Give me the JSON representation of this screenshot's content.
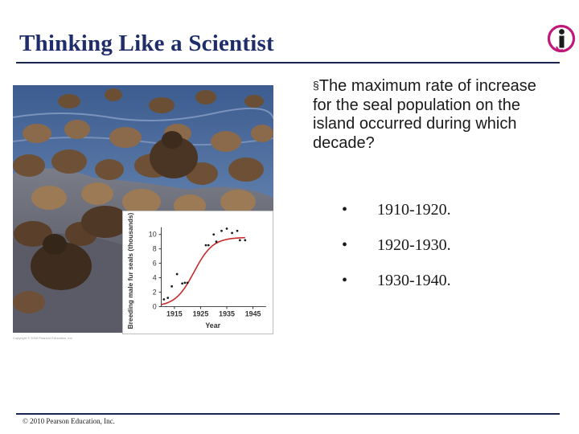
{
  "slide": {
    "title": "Thinking Like a Scientist",
    "question": "The maximum rate of increase for the seal population on the island occurred during which decade?",
    "question_marker": "§",
    "options": [
      {
        "bullet": "•",
        "label": "1910-1920."
      },
      {
        "bullet": "•",
        "label": "1920-1930."
      },
      {
        "bullet": "•",
        "label": "1930-1940."
      }
    ],
    "footer": "© 2010 Pearson Education, Inc.",
    "photo_caption": "Copyright © 2005 Pearson Education, Inc."
  },
  "colors": {
    "title": "#1f2d6b",
    "rule": "#1b2552",
    "logo_magenta": "#c0197a",
    "curve": "#c62828"
  },
  "icons": {
    "logo": "info-i-logo"
  },
  "chart_data": {
    "type": "scatter",
    "xlabel": "Year",
    "ylabel": "Breeding male fur seals (thousands)",
    "xlim": [
      1910,
      1950
    ],
    "ylim": [
      0,
      11
    ],
    "x_ticks": [
      "1915",
      "1925",
      "1935",
      "1945"
    ],
    "y_ticks": [
      "0",
      "2",
      "4",
      "6",
      "8",
      "10"
    ],
    "points": [
      {
        "x": 1911,
        "y": 1.0
      },
      {
        "x": 1912.5,
        "y": 1.2
      },
      {
        "x": 1914,
        "y": 2.8
      },
      {
        "x": 1916,
        "y": 4.5
      },
      {
        "x": 1918,
        "y": 3.2
      },
      {
        "x": 1919,
        "y": 3.3
      },
      {
        "x": 1920,
        "y": 3.3
      },
      {
        "x": 1927,
        "y": 8.5
      },
      {
        "x": 1928,
        "y": 8.5
      },
      {
        "x": 1930,
        "y": 10.0
      },
      {
        "x": 1931,
        "y": 9.0
      },
      {
        "x": 1933,
        "y": 10.5
      },
      {
        "x": 1935,
        "y": 10.8
      },
      {
        "x": 1937,
        "y": 10.2
      },
      {
        "x": 1939,
        "y": 10.5
      },
      {
        "x": 1940,
        "y": 9.2
      },
      {
        "x": 1942,
        "y": 9.2
      }
    ],
    "fit_curve": {
      "type": "logistic",
      "capacity": 9.6,
      "midpoint": 1922.5,
      "rate": 0.28,
      "x_range": [
        1910,
        1942
      ]
    },
    "grid": false
  }
}
